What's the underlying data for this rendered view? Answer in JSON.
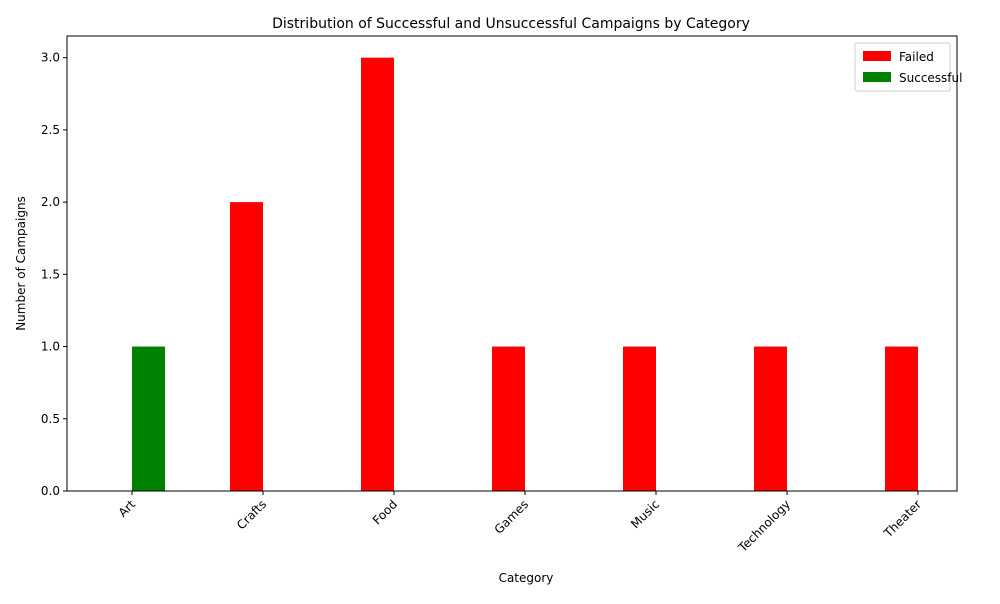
{
  "chart_data": {
    "type": "bar",
    "title": "Distribution of Successful and Unsuccessful Campaigns by Category",
    "xlabel": "Category",
    "ylabel": "Number of Campaigns",
    "categories": [
      "Art",
      "Crafts",
      "Food",
      "Games",
      "Music",
      "Technology",
      "Theater"
    ],
    "series": [
      {
        "name": "Failed",
        "values": [
          0,
          2,
          3,
          1,
          1,
          1,
          1
        ],
        "color": "#ff0000"
      },
      {
        "name": "Successful",
        "values": [
          1,
          0,
          0,
          0,
          0,
          0,
          0
        ],
        "color": "#008000"
      }
    ],
    "ylim": [
      0,
      3.15
    ],
    "yticks": [
      "0.0",
      "0.5",
      "1.0",
      "1.5",
      "2.0",
      "2.5",
      "3.0"
    ],
    "legend_position": "top-right",
    "grid": false
  }
}
